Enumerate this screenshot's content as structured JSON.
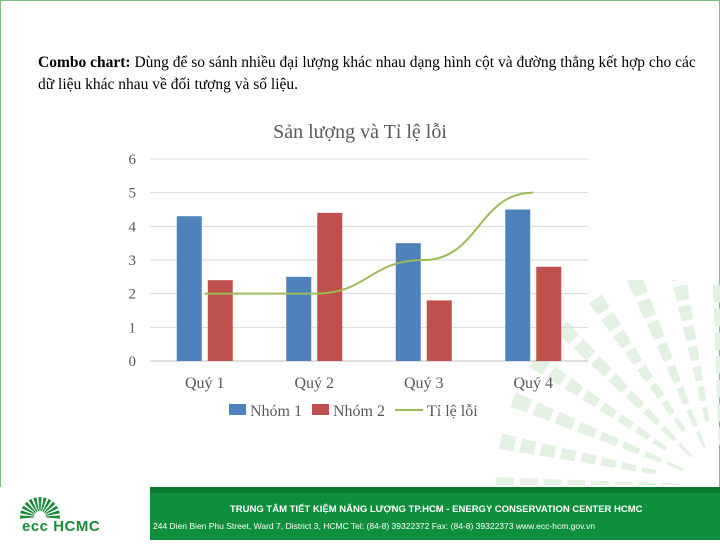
{
  "description": {
    "bold": "Combo chart:",
    "text": " Dùng để so sánh nhiều đại lượng khác nhau dạng hình cột và đường thẳng kết hợp cho các dữ liệu khác nhau về đối tượng và số liệu."
  },
  "chart_data": {
    "type": "bar",
    "title": "Sản lượng và Tỉ lệ lỗi",
    "categories": [
      "Quý 1",
      "Quý 2",
      "Quý 3",
      "Quý 4"
    ],
    "series": [
      {
        "name": "Nhóm 1",
        "type": "bar",
        "values": [
          4.3,
          2.5,
          3.5,
          4.5
        ],
        "color": "#4f81bd"
      },
      {
        "name": "Nhóm 2",
        "type": "bar",
        "values": [
          2.4,
          4.4,
          1.8,
          2.8
        ],
        "color": "#c0504d"
      },
      {
        "name": "Tỉ lệ lỗi",
        "type": "line",
        "values": [
          2,
          2,
          3,
          5
        ],
        "color": "#9bbb59"
      }
    ],
    "yticks": [
      "0",
      "1",
      "2",
      "3",
      "4",
      "5",
      "6"
    ],
    "ylim": [
      0,
      6
    ],
    "grid": true,
    "legend": "bottom"
  },
  "footer": {
    "logo": "ecc HCMC",
    "line1": "TRUNG TÂM TIẾT KIỆM NĂNG LƯỢNG TP.HCM  - ENERGY CONSERVATION CENTER HCMC",
    "line2": "244 Dien Bien Phu Street, Ward 7, District 3, HCMC   Tel: (84-8) 39322372   Fax: (84-8) 39322373    www.ecc-hcm.gov.vn"
  },
  "colors": {
    "footer": "#0f8f3c",
    "frame": "#7fbf7f"
  }
}
